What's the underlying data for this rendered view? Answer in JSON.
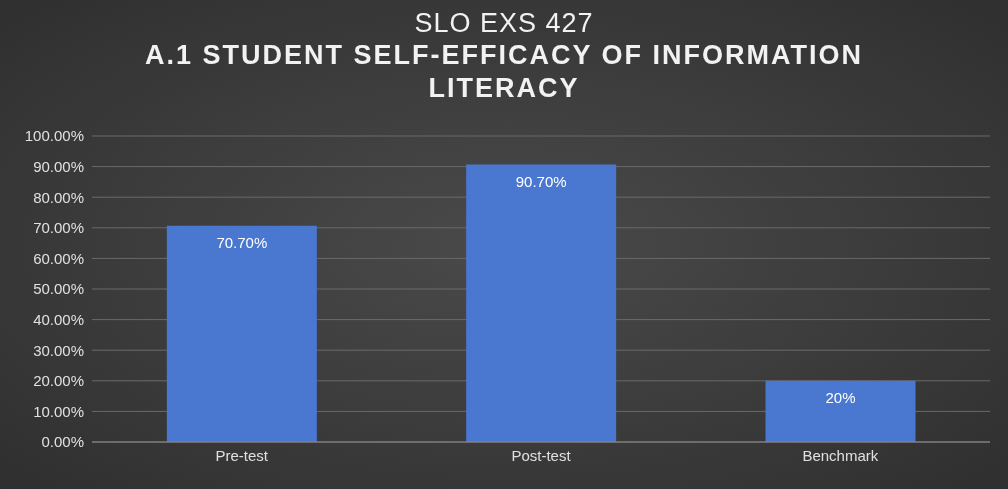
{
  "chart_data": {
    "type": "bar",
    "title": "SLO EXS 427",
    "subtitle": "A.1 STUDENT SELF-EFFICACY OF INFORMATION LITERACY",
    "categories": [
      "Pre-test",
      "Post-test",
      "Benchmark"
    ],
    "values": [
      70.7,
      90.7,
      20
    ],
    "value_labels": [
      "70.70%",
      "90.70%",
      "20%"
    ],
    "color": "#4a78d0",
    "ylim": [
      0,
      100
    ],
    "yticks": [
      {
        "value": 0,
        "label": "0.00%"
      },
      {
        "value": 10,
        "label": "10.00%"
      },
      {
        "value": 20,
        "label": "20.00%"
      },
      {
        "value": 30,
        "label": "30.00%"
      },
      {
        "value": 40,
        "label": "40.00%"
      },
      {
        "value": 50,
        "label": "50.00%"
      },
      {
        "value": 60,
        "label": "60.00%"
      },
      {
        "value": 70,
        "label": "70.00%"
      },
      {
        "value": 80,
        "label": "80.00%"
      },
      {
        "value": 90,
        "label": "90.00%"
      },
      {
        "value": 100,
        "label": "100.00%"
      }
    ],
    "grid": "y"
  }
}
